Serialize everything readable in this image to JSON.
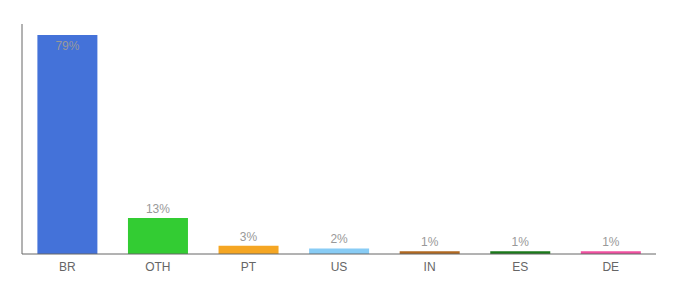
{
  "chart_data": {
    "type": "bar",
    "categories": [
      "BR",
      "OTH",
      "PT",
      "US",
      "IN",
      "ES",
      "DE"
    ],
    "values": [
      79,
      13,
      3,
      2,
      1,
      1,
      1
    ],
    "value_labels": [
      "79%",
      "13%",
      "3%",
      "2%",
      "1%",
      "1%",
      "1%"
    ],
    "colors": [
      "#4472d9",
      "#33cc33",
      "#f5a623",
      "#88ccf5",
      "#b06820",
      "#1a7a1a",
      "#f050a0"
    ],
    "ylim": [
      0,
      83
    ],
    "data_labels": true,
    "tick_labels": "x",
    "grid": false
  }
}
